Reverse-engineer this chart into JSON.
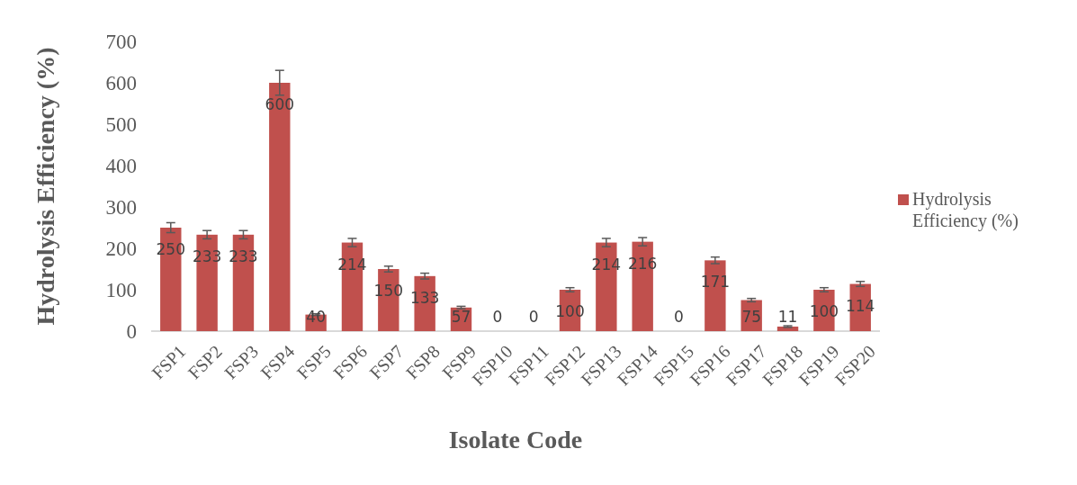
{
  "chart_data": {
    "type": "bar",
    "xlabel": "Isolate Code",
    "ylabel": "Hydrolysis Efficiency (%)",
    "categories": [
      "FSP1",
      "FSP2",
      "FSP3",
      "FSP4",
      "FSP5",
      "FSP6",
      "FSP7",
      "FSP8",
      "FSP9",
      "FSP10",
      "FSP11",
      "FSP12",
      "FSP13",
      "FSP14",
      "FSP15",
      "FSP16",
      "FSP17",
      "FSP18",
      "FSP19",
      "FSP20"
    ],
    "series": [
      {
        "name": "Hydrolysis Efficiency (%)",
        "color": "#c0504d",
        "values": [
          250,
          233,
          233,
          600,
          40,
          214,
          150,
          133,
          57,
          0,
          0,
          100,
          214,
          216,
          0,
          171,
          75,
          11,
          100,
          114
        ],
        "errors": [
          12,
          10,
          10,
          30,
          2,
          10,
          7,
          7,
          3,
          null,
          null,
          5,
          10,
          10,
          null,
          8,
          4,
          2,
          5,
          6
        ]
      }
    ],
    "ylim": [
      0,
      700
    ],
    "yticks": [
      0,
      100,
      200,
      300,
      400,
      500,
      600,
      700
    ],
    "data_labels": true,
    "legend": "right",
    "grid": false
  }
}
